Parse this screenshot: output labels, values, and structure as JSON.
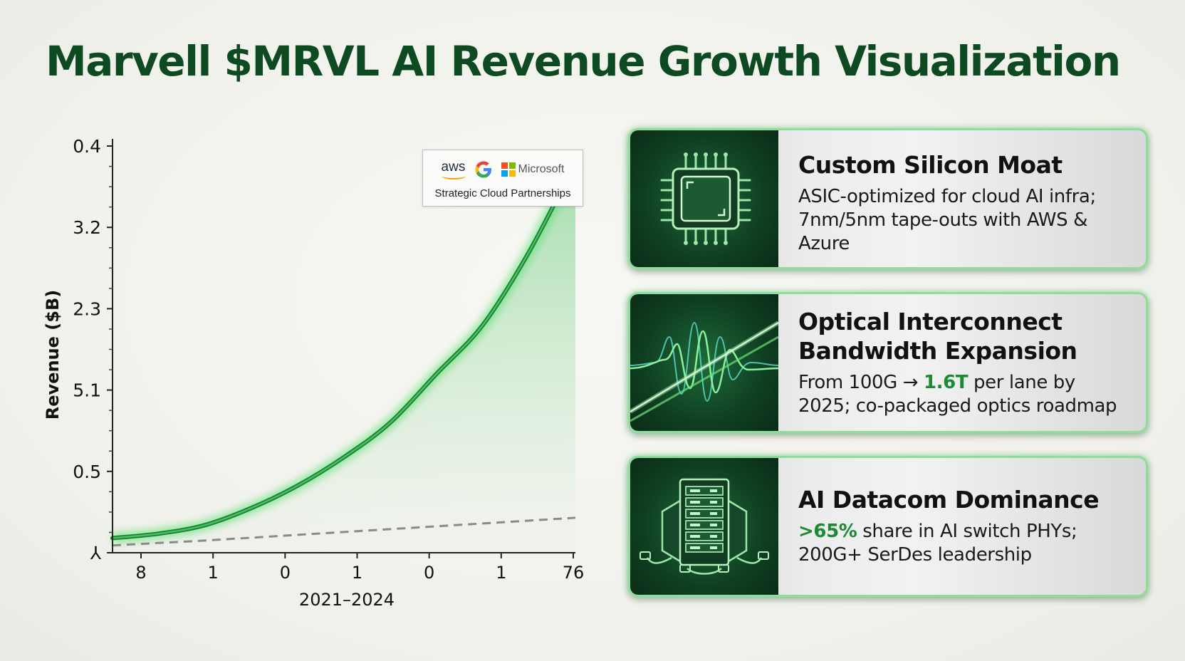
{
  "title": "Marvell $MRVL AI Revenue Growth Visualization",
  "chart_data": {
    "type": "area",
    "ylabel": "Revenue ($B)",
    "xlabel": "2021–2024",
    "y_tick_labels": [
      "0.4",
      "3.2",
      "2.3",
      "5.1",
      "0.5",
      "⅄"
    ],
    "x_tick_labels": [
      "8",
      "1",
      "0",
      "1",
      "0",
      "1",
      "76"
    ],
    "series": [
      {
        "values": [
          0.36,
          0.47,
          0.68,
          1.1,
          1.65,
          2.35,
          3.2,
          4.4,
          5.6,
          7.4,
          9.6
        ],
        "color": "#2fa84a"
      },
      {
        "values": [
          0.18,
          0.24,
          0.3,
          0.37,
          0.44,
          0.51,
          0.58,
          0.65,
          0.72,
          0.79,
          0.86
        ],
        "color": "#8a8a8a",
        "style": "dashed"
      }
    ],
    "ylim": [
      0,
      10
    ],
    "grid": false
  },
  "partners": {
    "aws": "aws",
    "microsoft": "Microsoft",
    "caption": "Strategic Cloud Partnerships"
  },
  "cards": [
    {
      "icon": "chip-icon",
      "title": "Custom Silicon Moat",
      "body_line1": "ASIC-optimized for cloud AI infra;",
      "body_line2": "7nm/5nm tape-outs with AWS & Azure"
    },
    {
      "icon": "optical-wave-icon",
      "title_line1": "Optical Interconnect",
      "title_line2": "Bandwidth Expansion",
      "body_pre": "From 100G → ",
      "body_hl": "1.6T",
      "body_post": " per lane by",
      "body_line2": "2025; co-packaged optics roadmap"
    },
    {
      "icon": "server-rack-icon",
      "title": "AI Datacom Dominance",
      "body_hl": ">65%",
      "body_post": " share in AI switch PHYs;",
      "body_line2": "200G+ SerDes leadership"
    }
  ],
  "colors": {
    "title": "#0d4a22",
    "line": "#2fa84a",
    "highlight": "#1b8a35",
    "card_border": "#8fdc9c"
  }
}
